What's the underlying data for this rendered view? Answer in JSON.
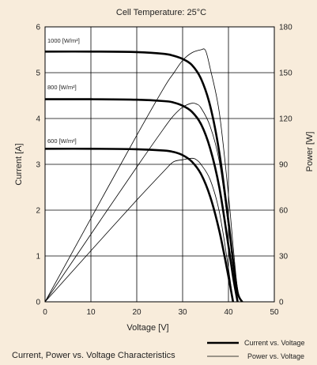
{
  "page": {
    "background": "#f8ecdb",
    "axes_background": "#ffffff"
  },
  "chart_data": {
    "type": "line",
    "title": "Cell Temperature:  25°C",
    "caption": "Current, Power vs. Voltage Characteristics",
    "xlabel": "Voltage [V]",
    "ylabel_left": "Current [A]",
    "ylabel_right": "Power [W]",
    "xlim": [
      0,
      50
    ],
    "ylim_left": [
      0,
      6
    ],
    "ylim_right": [
      0,
      180
    ],
    "x_ticks": [
      0,
      10,
      20,
      30,
      40,
      50
    ],
    "y_ticks_left": [
      0,
      1,
      2,
      3,
      4,
      5,
      6
    ],
    "y_ticks_right": [
      0,
      30,
      60,
      90,
      120,
      150,
      180
    ],
    "grid": true,
    "legend": {
      "position": "bottom-right",
      "items": [
        {
          "label": "Current vs. Voltage",
          "style": "thick"
        },
        {
          "label": "Power vs. Voltage",
          "style": "thin"
        }
      ]
    },
    "series": [
      {
        "name": "1000 [W/m²]",
        "kind": "current",
        "axis": "left",
        "x": [
          0,
          10,
          20,
          26,
          28,
          30,
          32,
          34,
          36,
          38,
          40,
          41,
          42,
          43
        ],
        "y": [
          5.46,
          5.46,
          5.45,
          5.41,
          5.37,
          5.3,
          5.17,
          4.87,
          4.28,
          3.26,
          1.75,
          0.9,
          0.2,
          0
        ]
      },
      {
        "name": "1000 [W/m²]",
        "kind": "power",
        "axis": "right",
        "x": [
          0,
          10,
          20,
          26,
          28,
          30,
          32,
          34,
          35,
          36,
          38,
          40,
          41,
          42,
          43
        ],
        "y": [
          0,
          54.6,
          109,
          140.5,
          149.5,
          158,
          163,
          165,
          164.5,
          153,
          124,
          70,
          37,
          8,
          0
        ]
      },
      {
        "name": "800 [W/m²]",
        "kind": "current",
        "axis": "left",
        "x": [
          0,
          10,
          20,
          26,
          28,
          30,
          32,
          34,
          36,
          38,
          40,
          41,
          42
        ],
        "y": [
          4.42,
          4.42,
          4.41,
          4.38,
          4.35,
          4.28,
          4.15,
          3.88,
          3.35,
          2.5,
          1.22,
          0.55,
          0
        ]
      },
      {
        "name": "800 [W/m²]",
        "kind": "power",
        "axis": "right",
        "x": [
          0,
          10,
          20,
          26,
          28,
          30,
          32,
          33,
          34,
          36,
          38,
          40,
          41,
          42
        ],
        "y": [
          0,
          44.2,
          88.2,
          113.9,
          121.8,
          127.4,
          130,
          129.5,
          127,
          115,
          92,
          49,
          22.5,
          0
        ]
      },
      {
        "name": "600 [W/m²]",
        "kind": "current",
        "axis": "left",
        "x": [
          0,
          10,
          20,
          26,
          28,
          30,
          32,
          34,
          36,
          38,
          40,
          41
        ],
        "y": [
          3.34,
          3.34,
          3.33,
          3.3,
          3.27,
          3.2,
          3.06,
          2.79,
          2.3,
          1.55,
          0.55,
          0
        ]
      },
      {
        "name": "600 [W/m²]",
        "kind": "power",
        "axis": "right",
        "x": [
          0,
          10,
          20,
          26,
          28,
          30,
          32,
          33,
          34,
          36,
          38,
          40,
          41
        ],
        "y": [
          0,
          33.4,
          66.6,
          85.8,
          91.6,
          93,
          94,
          93,
          90,
          80,
          59,
          22,
          0
        ]
      }
    ],
    "annotations": [
      "1000 [W/m²]",
      "800 [W/m²]",
      "600 [W/m²]"
    ]
  }
}
